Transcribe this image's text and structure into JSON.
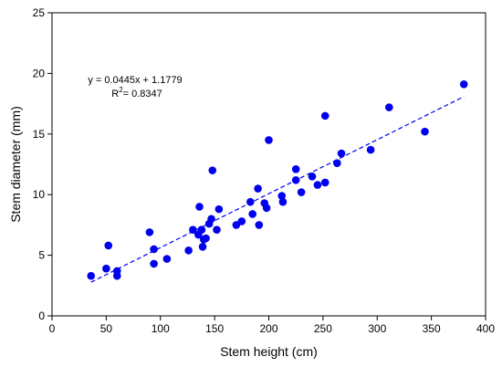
{
  "chart_data": {
    "type": "scatter",
    "title": "",
    "xlabel": "Stem height (cm)",
    "ylabel": "Stem diameter (mm)",
    "xlim": [
      0,
      400
    ],
    "ylim": [
      0,
      25
    ],
    "xticks": [
      0,
      50,
      100,
      150,
      200,
      250,
      300,
      350,
      400
    ],
    "yticks": [
      0,
      5,
      10,
      15,
      20,
      25
    ],
    "grid": false,
    "legend": "none",
    "point_color": "#0000ee",
    "line_color": "#0000ee",
    "series": [
      {
        "points": [
          [
            36,
            3.3
          ],
          [
            50,
            3.9
          ],
          [
            52,
            5.8
          ],
          [
            60,
            3.7
          ],
          [
            60,
            3.3
          ],
          [
            90,
            6.9
          ],
          [
            94,
            5.5
          ],
          [
            94,
            4.3
          ],
          [
            106,
            4.7
          ],
          [
            126,
            5.4
          ],
          [
            130,
            7.1
          ],
          [
            135,
            6.7
          ],
          [
            136,
            9.0
          ],
          [
            138,
            7.1
          ],
          [
            139,
            5.7
          ],
          [
            140,
            6.3
          ],
          [
            142,
            6.4
          ],
          [
            145,
            7.6
          ],
          [
            147,
            8.0
          ],
          [
            148,
            12.0
          ],
          [
            152,
            7.1
          ],
          [
            154,
            8.8
          ],
          [
            170,
            7.5
          ],
          [
            175,
            7.8
          ],
          [
            183,
            9.4
          ],
          [
            185,
            8.4
          ],
          [
            190,
            10.5
          ],
          [
            191,
            7.5
          ],
          [
            196,
            9.3
          ],
          [
            198,
            8.9
          ],
          [
            200,
            14.5
          ],
          [
            212,
            9.9
          ],
          [
            213,
            9.4
          ],
          [
            225,
            12.1
          ],
          [
            225,
            11.2
          ],
          [
            230,
            10.2
          ],
          [
            240,
            11.5
          ],
          [
            245,
            10.8
          ],
          [
            252,
            11.0
          ],
          [
            252,
            16.5
          ],
          [
            263,
            12.6
          ],
          [
            267,
            13.4
          ],
          [
            294,
            13.7
          ],
          [
            311,
            17.2
          ],
          [
            344,
            15.2
          ],
          [
            380,
            19.1
          ]
        ]
      }
    ],
    "trendline": {
      "slope": 0.0445,
      "intercept": 1.1779,
      "x_range": [
        36,
        380
      ]
    },
    "annotation": {
      "equation": "y = 0.0445x + 1.1779",
      "r2_prefix": "R",
      "r2_sup": "2",
      "r2_value": "= 0.8347"
    }
  }
}
